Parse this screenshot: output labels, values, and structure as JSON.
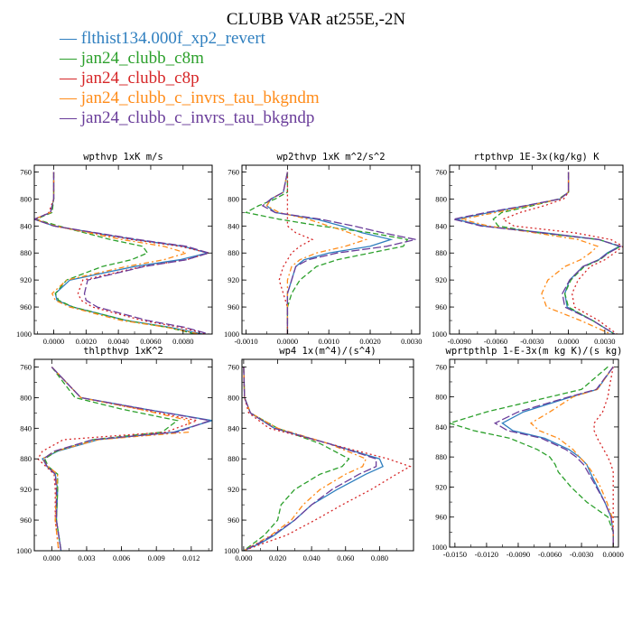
{
  "figure": {
    "title": "CLUBB VAR at255E,-2N",
    "legend_placement": "top-left",
    "legend": [
      {
        "name": "flthist134.000f_xp2_revert",
        "color": "#2f7fbf"
      },
      {
        "name": "jan24_clubb_c8m",
        "color": "#2ca02c"
      },
      {
        "name": "jan24_clubb_c8p",
        "color": "#d62728"
      },
      {
        "name": "jan24_clubb_c_invrs_tau_bkgndm",
        "color": "#ff8c1a"
      },
      {
        "name": "jan24_clubb_c_invrs_tau_bkgndp",
        "color": "#6a3d9a"
      }
    ]
  },
  "chart_data": [
    {
      "type": "line",
      "title": "wpthvp  1xK m/s",
      "xlim": [
        -0.0012,
        0.0098
      ],
      "ylim": [
        1000,
        750
      ],
      "xticks": [
        0.0,
        0.002,
        0.004,
        0.006,
        0.008
      ],
      "xtick_labels": [
        "0.0000",
        "0.0020",
        "0.0040",
        "0.0060",
        "0.0080"
      ],
      "yticks": [
        760,
        800,
        840,
        880,
        920,
        960,
        1000
      ],
      "ytick_labels": [
        "760",
        "800",
        "840",
        "880",
        "920",
        "960",
        "1000"
      ],
      "pressure": [
        760,
        800,
        820,
        830,
        840,
        860,
        870,
        880,
        890,
        900,
        920,
        940,
        950,
        960,
        980,
        990,
        1000
      ],
      "series": [
        {
          "name": "flthist134.000f_xp2_revert",
          "values": [
            0.0,
            0.0,
            -0.0002,
            -0.0012,
            0.0,
            0.005,
            0.008,
            0.0095,
            0.0078,
            0.005,
            0.001,
            0.0001,
            0.0002,
            0.0012,
            0.0045,
            0.0072,
            0.0092
          ]
        },
        {
          "name": "jan24_clubb_c8m",
          "values": [
            0.0,
            0.0,
            -0.0001,
            -0.0011,
            0.0003,
            0.0035,
            0.0055,
            0.0058,
            0.0048,
            0.003,
            0.0008,
            0.0001,
            0.0003,
            0.0012,
            0.0045,
            0.007,
            0.0088
          ]
        },
        {
          "name": "jan24_clubb_c8p",
          "values": [
            0.0,
            0.0,
            -0.0003,
            -0.0011,
            0.0,
            0.0048,
            0.0078,
            0.0096,
            0.0082,
            0.0055,
            0.0018,
            0.0015,
            0.0017,
            0.0024,
            0.0055,
            0.0078,
            0.0095
          ]
        },
        {
          "name": "jan24_clubb_c_invrs_tau_bkgndm",
          "values": [
            0.0,
            0.0,
            -0.0002,
            -0.0012,
            0.0001,
            0.0042,
            0.0068,
            0.0082,
            0.0068,
            0.0045,
            0.0008,
            -0.0001,
            0.0001,
            0.001,
            0.0042,
            0.007,
            0.009
          ]
        },
        {
          "name": "jan24_clubb_c_invrs_tau_bkgndp",
          "values": [
            0.0,
            0.0,
            -0.0002,
            -0.0012,
            0.0,
            0.0052,
            0.0082,
            0.0096,
            0.0082,
            0.0056,
            0.0021,
            0.0019,
            0.002,
            0.0027,
            0.0058,
            0.0081,
            0.0096
          ]
        }
      ]
    },
    {
      "type": "line",
      "title": "wp2thvp  1xK m^2/s^2",
      "xlim": [
        -0.0011,
        0.0032
      ],
      "ylim": [
        1000,
        750
      ],
      "xticks": [
        -0.001,
        0.0,
        0.001,
        0.002,
        0.003
      ],
      "xtick_labels": [
        "-0.0010",
        "0.0000",
        "0.0010",
        "0.0020",
        "0.0030"
      ],
      "yticks": [
        760,
        800,
        840,
        880,
        920,
        960,
        1000
      ],
      "ytick_labels": [
        "760",
        "800",
        "840",
        "880",
        "920",
        "960",
        "1000"
      ],
      "pressure": [
        760,
        790,
        800,
        810,
        820,
        830,
        840,
        850,
        860,
        870,
        880,
        890,
        900,
        920,
        940,
        960,
        980,
        1000
      ],
      "series": [
        {
          "name": "flthist134.000f_xp2_revert",
          "values": [
            0.0,
            -0.0001,
            -0.0004,
            -0.0005,
            -0.0003,
            0.0007,
            0.0013,
            0.0018,
            0.0025,
            0.002,
            0.001,
            0.0004,
            0.0002,
            0.0001,
            0.0,
            0.0,
            0.0,
            0.0
          ]
        },
        {
          "name": "jan24_clubb_c8m",
          "values": [
            0.0,
            0.0,
            -0.0003,
            -0.0007,
            -0.001,
            -0.0002,
            0.0008,
            0.002,
            0.0029,
            0.0028,
            0.002,
            0.0012,
            0.0007,
            0.0003,
            0.0001,
            0.0,
            0.0,
            0.0
          ]
        },
        {
          "name": "jan24_clubb_c8p",
          "values": [
            0.0,
            0.0,
            0.0,
            0.0,
            0.0,
            0.0,
            0.0,
            0.0002,
            0.0006,
            0.0003,
            0.0001,
            0.0,
            -0.0001,
            -0.0002,
            -0.0001,
            0.0,
            0.0,
            0.0
          ]
        },
        {
          "name": "jan24_clubb_c_invrs_tau_bkgndm",
          "values": [
            0.0,
            -0.0001,
            -0.0004,
            -0.0005,
            -0.0002,
            0.0005,
            0.001,
            0.0015,
            0.0019,
            0.0014,
            0.0007,
            0.0003,
            0.0001,
            0.0,
            0.0,
            0.0,
            0.0,
            0.0
          ]
        },
        {
          "name": "jan24_clubb_c_invrs_tau_bkgndp",
          "values": [
            0.0,
            -0.0001,
            -0.0004,
            -0.0006,
            -0.0003,
            0.0008,
            0.0016,
            0.0023,
            0.0031,
            0.0024,
            0.0012,
            0.0005,
            0.0002,
            0.0001,
            0.0,
            0.0,
            0.0,
            0.0
          ]
        }
      ]
    },
    {
      "type": "line",
      "title": "rtpthvp  1E-3x(kg/kg) K",
      "xlim": [
        -0.0098,
        0.0045
      ],
      "ylim": [
        1000,
        750
      ],
      "xticks": [
        -0.009,
        -0.006,
        -0.003,
        0.0,
        0.003
      ],
      "xtick_labels": [
        "-0.0090",
        "-0.0060",
        "-0.0030",
        "0.0000",
        "0.0030"
      ],
      "yticks": [
        760,
        800,
        840,
        880,
        920,
        960,
        1000
      ],
      "ytick_labels": [
        "760",
        "800",
        "840",
        "880",
        "920",
        "960",
        "1000"
      ],
      "pressure": [
        760,
        790,
        800,
        810,
        820,
        830,
        840,
        850,
        860,
        870,
        880,
        890,
        900,
        920,
        940,
        960,
        980,
        1000
      ],
      "series": [
        {
          "name": "flthist134.000f_xp2_revert",
          "values": [
            0.0,
            0.0,
            -0.0007,
            -0.0035,
            -0.0065,
            -0.0093,
            -0.007,
            -0.002,
            0.0025,
            0.0042,
            0.0032,
            0.0025,
            0.0012,
            0.0001,
            -0.0003,
            -0.0001,
            0.002,
            0.0038
          ]
        },
        {
          "name": "jan24_clubb_c8m",
          "values": [
            0.0,
            0.0,
            -0.0008,
            -0.003,
            -0.0055,
            -0.0062,
            -0.0058,
            -0.0025,
            0.0025,
            0.0043,
            0.0033,
            0.0026,
            0.0013,
            0.0002,
            -0.0003,
            0.0,
            0.002,
            0.0038
          ]
        },
        {
          "name": "jan24_clubb_c8p",
          "values": [
            0.0,
            0.0,
            -0.0004,
            -0.002,
            -0.004,
            -0.0054,
            -0.0045,
            0.0005,
            0.0035,
            0.0045,
            0.0038,
            0.003,
            0.0018,
            0.0008,
            0.0003,
            0.0005,
            0.0025,
            0.004
          ]
        },
        {
          "name": "jan24_clubb_c_invrs_tau_bkgndm",
          "values": [
            0.0,
            0.0,
            -0.0007,
            -0.0033,
            -0.006,
            -0.0088,
            -0.0066,
            -0.0028,
            0.0008,
            0.0024,
            0.0018,
            0.001,
            -0.0003,
            -0.0017,
            -0.0022,
            -0.0018,
            0.001,
            0.0035
          ]
        },
        {
          "name": "jan24_clubb_c_invrs_tau_bkgndp",
          "values": [
            0.0,
            0.0,
            -0.0007,
            -0.0036,
            -0.0068,
            -0.0095,
            -0.0072,
            -0.0022,
            0.0025,
            0.0043,
            0.0033,
            0.0025,
            0.0012,
            0.0001,
            -0.0005,
            -0.0003,
            0.002,
            0.0038
          ]
        }
      ]
    },
    {
      "type": "line",
      "title": "thlpthvp  1xK^2",
      "xlim": [
        -0.0015,
        0.0138
      ],
      "ylim": [
        1000,
        750
      ],
      "xticks": [
        0.0,
        0.003,
        0.006,
        0.009,
        0.012
      ],
      "xtick_labels": [
        "0.000",
        "0.003",
        "0.006",
        "0.009",
        "0.012"
      ],
      "yticks": [
        760,
        800,
        840,
        880,
        920,
        960,
        1000
      ],
      "ytick_labels": [
        "760",
        "800",
        "840",
        "880",
        "920",
        "960",
        "1000"
      ],
      "pressure": [
        760,
        800,
        815,
        830,
        845,
        855,
        870,
        880,
        890,
        900,
        920,
        960,
        1000
      ],
      "series": [
        {
          "name": "flthist134.000f_xp2_revert",
          "values": [
            0.0,
            0.0025,
            0.008,
            0.0138,
            0.0105,
            0.004,
            0.0005,
            -0.0008,
            -0.0004,
            0.0003,
            0.0005,
            0.0004,
            0.0008
          ]
        },
        {
          "name": "jan24_clubb_c8m",
          "values": [
            0.0,
            0.002,
            0.006,
            0.0108,
            0.0095,
            0.0035,
            0.0004,
            -0.0006,
            -0.0003,
            0.0005,
            0.0005,
            0.0004,
            0.0008
          ]
        },
        {
          "name": "jan24_clubb_c8p",
          "values": [
            0.0,
            0.0025,
            0.0075,
            0.0125,
            0.0098,
            0.001,
            -0.0008,
            -0.0012,
            -0.0005,
            0.0002,
            0.0003,
            0.0003,
            0.0006
          ]
        },
        {
          "name": "jan24_clubb_c_invrs_tau_bkgndm",
          "values": [
            0.0,
            0.0025,
            0.0075,
            0.0118,
            0.0118,
            0.004,
            0.0003,
            -0.0008,
            -0.0003,
            0.0005,
            0.0004,
            0.0003,
            0.0006
          ]
        },
        {
          "name": "jan24_clubb_c_invrs_tau_bkgndp",
          "values": [
            0.0,
            0.0025,
            0.008,
            0.0136,
            0.0108,
            0.0035,
            0.0002,
            -0.0007,
            -0.0004,
            0.0003,
            0.0004,
            0.0004,
            0.0008
          ]
        }
      ]
    },
    {
      "type": "line",
      "title": "wp4  1x(m^4)/(s^4)",
      "xlim": [
        -0.001,
        0.1
      ],
      "ylim": [
        1000,
        750
      ],
      "xticks": [
        0.0,
        0.02,
        0.04,
        0.06,
        0.08
      ],
      "xtick_labels": [
        "0.000",
        "0.020",
        "0.040",
        "0.060",
        "0.080"
      ],
      "yticks": [
        760,
        800,
        840,
        880,
        920,
        960,
        1000
      ],
      "ytick_labels": [
        "760",
        "800",
        "840",
        "880",
        "920",
        "960",
        "1000"
      ],
      "pressure": [
        760,
        800,
        820,
        840,
        860,
        880,
        890,
        900,
        920,
        940,
        960,
        980,
        990,
        1000
      ],
      "series": [
        {
          "name": "flthist134.000f_xp2_revert",
          "values": [
            0.0,
            0.0005,
            0.004,
            0.018,
            0.05,
            0.08,
            0.082,
            0.072,
            0.055,
            0.04,
            0.03,
            0.018,
            0.01,
            0.0
          ]
        },
        {
          "name": "jan24_clubb_c8m",
          "values": [
            0.0,
            0.0005,
            0.004,
            0.02,
            0.045,
            0.062,
            0.058,
            0.045,
            0.03,
            0.022,
            0.02,
            0.012,
            0.006,
            0.0
          ]
        },
        {
          "name": "jan24_clubb_c8p",
          "values": [
            0.0,
            0.0005,
            0.003,
            0.015,
            0.05,
            0.085,
            0.098,
            0.09,
            0.075,
            0.058,
            0.042,
            0.025,
            0.012,
            0.0
          ]
        },
        {
          "name": "jan24_clubb_c_invrs_tau_bkgndm",
          "values": [
            0.0,
            0.0005,
            0.004,
            0.02,
            0.05,
            0.072,
            0.07,
            0.06,
            0.045,
            0.035,
            0.028,
            0.016,
            0.008,
            0.0
          ]
        },
        {
          "name": "jan24_clubb_c_invrs_tau_bkgndp",
          "values": [
            0.0,
            0.0005,
            0.004,
            0.018,
            0.05,
            0.078,
            0.078,
            0.068,
            0.052,
            0.04,
            0.03,
            0.017,
            0.009,
            0.0
          ]
        }
      ]
    },
    {
      "type": "line",
      "title": "wprtpthlp  1-E-3x(m kg K)/(s kg)",
      "xlim": [
        -0.0155,
        0.0005
      ],
      "ylim": [
        1000,
        750
      ],
      "xticks": [
        -0.015,
        -0.012,
        -0.009,
        -0.006,
        -0.003,
        0.0
      ],
      "xtick_labels": [
        "-0.0150",
        "-0.0120",
        "-0.0090",
        "-0.0060",
        "-0.0030",
        "0.0000"
      ],
      "yticks": [
        760,
        800,
        840,
        880,
        920,
        960,
        1000
      ],
      "ytick_labels": [
        "760",
        "800",
        "840",
        "880",
        "920",
        "960",
        "1000"
      ],
      "pressure": [
        760,
        790,
        800,
        820,
        835,
        845,
        855,
        870,
        880,
        890,
        900,
        920,
        940,
        960,
        980,
        1000
      ],
      "series": [
        {
          "name": "flthist134.000f_xp2_revert",
          "values": [
            0.0,
            -0.0015,
            -0.004,
            -0.0085,
            -0.0105,
            -0.0095,
            -0.0065,
            -0.0042,
            -0.0032,
            -0.0025,
            -0.0022,
            -0.0015,
            -0.0008,
            -0.0002,
            0.0,
            0.0
          ]
        },
        {
          "name": "jan24_clubb_c8m",
          "values": [
            -0.0005,
            -0.003,
            -0.006,
            -0.012,
            -0.0155,
            -0.0132,
            -0.0098,
            -0.0072,
            -0.006,
            -0.0055,
            -0.0052,
            -0.004,
            -0.0025,
            -0.0005,
            0.0,
            0.0
          ]
        },
        {
          "name": "jan24_clubb_c8p",
          "values": [
            0.0,
            -0.0004,
            -0.0005,
            -0.001,
            -0.0018,
            -0.0018,
            -0.0015,
            -0.0009,
            -0.0005,
            -0.0002,
            0.0,
            0.0,
            0.0,
            0.0,
            0.0,
            0.0
          ]
        },
        {
          "name": "jan24_clubb_c_invrs_tau_bkgndm",
          "values": [
            0.0,
            -0.0015,
            -0.0038,
            -0.006,
            -0.0078,
            -0.007,
            -0.0052,
            -0.0038,
            -0.0032,
            -0.0025,
            -0.002,
            -0.0012,
            -0.0006,
            -0.0001,
            0.0,
            0.0
          ]
        },
        {
          "name": "jan24_clubb_c_invrs_tau_bkgndp",
          "values": [
            0.0,
            -0.0016,
            -0.0042,
            -0.009,
            -0.0112,
            -0.01,
            -0.0068,
            -0.0045,
            -0.0035,
            -0.0028,
            -0.0024,
            -0.0016,
            -0.0008,
            -0.0002,
            0.0,
            0.0
          ]
        }
      ]
    }
  ]
}
